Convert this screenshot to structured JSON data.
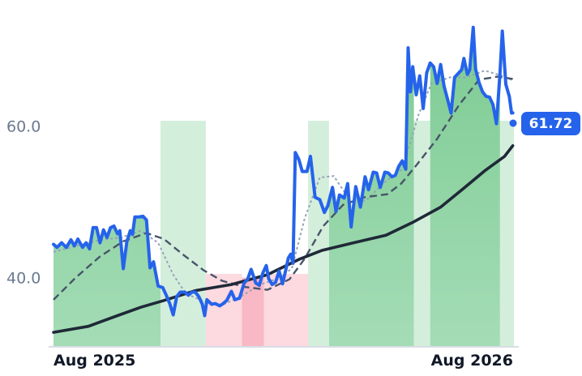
{
  "chart_data": {
    "type": "line",
    "title": "",
    "xlabel": "",
    "ylabel": "",
    "ylim": [
      31,
      73.5
    ],
    "x_range": [
      "2025-08-01",
      "2026-09-01"
    ],
    "grid": false,
    "y_ticks": [
      {
        "value": 40,
        "label": "40.0"
      },
      {
        "value": 60,
        "label": "60.0"
      }
    ],
    "x_ticks": [
      {
        "date": "2025-08-01",
        "label": "Aug 2025"
      },
      {
        "date": "2026-08-01",
        "label": "Aug 2026"
      }
    ],
    "last_value": {
      "value": 61.72,
      "label": "61.72"
    },
    "colors": {
      "price": "#2563eb",
      "ma_long": "#1f2937",
      "ma_mid": "#475569",
      "ma_short": "#94a3b8",
      "up_strong": "#86cc9a",
      "up_weak": "#d4eedc",
      "down_weak": "#fdd9e0",
      "down_strong": "#f9b8c6",
      "badge": "#2563eb"
    },
    "regime_bands": [
      {
        "start": "2025-08-01",
        "end": "2025-11-01",
        "state": "up_strong"
      },
      {
        "start": "2025-11-01",
        "end": "2025-12-10",
        "state": "up_weak"
      },
      {
        "start": "2025-12-10",
        "end": "2026-01-10",
        "state": "down_weak"
      },
      {
        "start": "2026-01-10",
        "end": "2026-01-29",
        "state": "down_strong"
      },
      {
        "start": "2026-01-29",
        "end": "2026-03-08",
        "state": "down_weak"
      },
      {
        "start": "2026-03-08",
        "end": "2026-03-26",
        "state": "up_weak"
      },
      {
        "start": "2026-03-26",
        "end": "2026-06-07",
        "state": "up_strong"
      },
      {
        "start": "2026-06-07",
        "end": "2026-06-21",
        "state": "up_weak"
      },
      {
        "start": "2026-06-21",
        "end": "2026-08-20",
        "state": "up_strong"
      },
      {
        "start": "2026-08-20",
        "end": "2026-09-01",
        "state": "up_weak"
      }
    ],
    "series": [
      {
        "key": "price",
        "points": [
          [
            "2025-08-01",
            44.4
          ],
          [
            "2025-08-04",
            44.0
          ],
          [
            "2025-08-08",
            44.6
          ],
          [
            "2025-08-12",
            44.0
          ],
          [
            "2025-08-16",
            45.0
          ],
          [
            "2025-08-19",
            44.2
          ],
          [
            "2025-08-22",
            45.1
          ],
          [
            "2025-08-26",
            44.0
          ],
          [
            "2025-08-29",
            44.6
          ],
          [
            "2025-09-01",
            43.8
          ],
          [
            "2025-09-04",
            46.6
          ],
          [
            "2025-09-07",
            46.6
          ],
          [
            "2025-09-10",
            44.6
          ],
          [
            "2025-09-13",
            46.3
          ],
          [
            "2025-09-16",
            45.3
          ],
          [
            "2025-09-19",
            46.6
          ],
          [
            "2025-09-22",
            46.8
          ],
          [
            "2025-09-25",
            45.8
          ],
          [
            "2025-09-27",
            46.2
          ],
          [
            "2025-09-30",
            41.2
          ],
          [
            "2025-10-03",
            44.7
          ],
          [
            "2025-10-06",
            46.2
          ],
          [
            "2025-10-08",
            45.7
          ],
          [
            "2025-10-10",
            48.0
          ],
          [
            "2025-10-13",
            48.0
          ],
          [
            "2025-10-17",
            48.1
          ],
          [
            "2025-10-20",
            47.6
          ],
          [
            "2025-10-23",
            41.3
          ],
          [
            "2025-10-26",
            42.1
          ],
          [
            "2025-10-30",
            38.9
          ],
          [
            "2025-11-03",
            38.7
          ],
          [
            "2025-11-06",
            37.7
          ],
          [
            "2025-11-09",
            36.6
          ],
          [
            "2025-11-12",
            35.1
          ],
          [
            "2025-11-15",
            37.5
          ],
          [
            "2025-11-18",
            38.1
          ],
          [
            "2025-11-22",
            38.1
          ],
          [
            "2025-11-25",
            37.7
          ],
          [
            "2025-11-28",
            38.1
          ],
          [
            "2025-12-01",
            38.1
          ],
          [
            "2025-12-04",
            37.5
          ],
          [
            "2025-12-07",
            36.5
          ],
          [
            "2025-12-09",
            35.0
          ],
          [
            "2025-12-11",
            37.1
          ],
          [
            "2025-12-15",
            36.5
          ],
          [
            "2025-12-18",
            36.6
          ],
          [
            "2025-12-22",
            36.3
          ],
          [
            "2025-12-25",
            36.6
          ],
          [
            "2025-12-28",
            37.0
          ],
          [
            "2026-01-01",
            38.2
          ],
          [
            "2026-01-04",
            37.1
          ],
          [
            "2026-01-08",
            37.3
          ],
          [
            "2026-01-12",
            39.3
          ],
          [
            "2026-01-15",
            39.8
          ],
          [
            "2026-01-18",
            41.1
          ],
          [
            "2026-01-22",
            39.3
          ],
          [
            "2026-01-25",
            39.0
          ],
          [
            "2026-01-28",
            40.6
          ],
          [
            "2026-01-31",
            41.6
          ],
          [
            "2026-02-02",
            39.9
          ],
          [
            "2026-02-05",
            39.1
          ],
          [
            "2026-02-08",
            39.4
          ],
          [
            "2026-02-11",
            40.9
          ],
          [
            "2026-02-14",
            39.2
          ],
          [
            "2026-02-17",
            41.2
          ],
          [
            "2026-02-19",
            42.6
          ],
          [
            "2026-02-21",
            43.1
          ],
          [
            "2026-02-23",
            41.9
          ],
          [
            "2026-02-25",
            56.5
          ],
          [
            "2026-02-28",
            55.6
          ],
          [
            "2026-03-03",
            54.0
          ],
          [
            "2026-03-07",
            54.0
          ],
          [
            "2026-03-10",
            56.0
          ],
          [
            "2026-03-14",
            50.6
          ],
          [
            "2026-03-18",
            50.3
          ],
          [
            "2026-03-22",
            48.6
          ],
          [
            "2026-03-25",
            49.5
          ],
          [
            "2026-03-29",
            51.9
          ],
          [
            "2026-04-01",
            48.7
          ],
          [
            "2026-04-04",
            50.9
          ],
          [
            "2026-04-08",
            50.5
          ],
          [
            "2026-04-11",
            52.4
          ],
          [
            "2026-04-14",
            46.7
          ],
          [
            "2026-04-18",
            52.0
          ],
          [
            "2026-04-22",
            49.3
          ],
          [
            "2026-04-26",
            53.3
          ],
          [
            "2026-04-29",
            51.6
          ],
          [
            "2026-05-03",
            53.9
          ],
          [
            "2026-05-06",
            53.8
          ],
          [
            "2026-05-09",
            51.9
          ],
          [
            "2026-05-13",
            53.9
          ],
          [
            "2026-05-16",
            53.8
          ],
          [
            "2026-05-19",
            53.3
          ],
          [
            "2026-05-22",
            53.5
          ],
          [
            "2026-05-25",
            54.7
          ],
          [
            "2026-05-28",
            55.4
          ],
          [
            "2026-05-31",
            54.3
          ],
          [
            "2026-06-02",
            70.3
          ],
          [
            "2026-06-04",
            64.5
          ],
          [
            "2026-06-06",
            67.8
          ],
          [
            "2026-06-09",
            64.1
          ],
          [
            "2026-06-12",
            66.6
          ],
          [
            "2026-06-15",
            62.3
          ],
          [
            "2026-06-18",
            67.0
          ],
          [
            "2026-06-21",
            68.3
          ],
          [
            "2026-06-24",
            67.8
          ],
          [
            "2026-06-27",
            65.6
          ],
          [
            "2026-06-30",
            68.1
          ],
          [
            "2026-07-03",
            65.2
          ],
          [
            "2026-07-06",
            63.5
          ],
          [
            "2026-07-09",
            61.7
          ],
          [
            "2026-07-12",
            66.4
          ],
          [
            "2026-07-15",
            66.9
          ],
          [
            "2026-07-18",
            67.4
          ],
          [
            "2026-07-20",
            68.9
          ],
          [
            "2026-07-23",
            66.8
          ],
          [
            "2026-07-25",
            67.4
          ],
          [
            "2026-07-28",
            73.0
          ],
          [
            "2026-07-30",
            67.5
          ],
          [
            "2026-08-02",
            65.7
          ],
          [
            "2026-08-05",
            64.5
          ],
          [
            "2026-08-08",
            63.9
          ],
          [
            "2026-08-11",
            63.8
          ],
          [
            "2026-08-14",
            62.8
          ],
          [
            "2026-08-17",
            60.3
          ],
          [
            "2026-08-20",
            66.9
          ],
          [
            "2026-08-22",
            72.5
          ],
          [
            "2026-08-25",
            65.5
          ],
          [
            "2026-08-28",
            63.9
          ],
          [
            "2026-08-30",
            61.7
          ],
          [
            "2026-08-31",
            61.72
          ]
        ]
      },
      {
        "key": "ma_short",
        "points": [
          [
            "2025-08-01",
            43.4
          ],
          [
            "2025-08-21",
            44.2
          ],
          [
            "2025-09-08",
            44.9
          ],
          [
            "2025-09-28",
            45.3
          ],
          [
            "2025-10-15",
            46.2
          ],
          [
            "2025-10-30",
            44.6
          ],
          [
            "2025-11-12",
            40.4
          ],
          [
            "2025-11-23",
            37.9
          ],
          [
            "2025-12-08",
            36.9
          ],
          [
            "2025-12-24",
            36.4
          ],
          [
            "2026-01-10",
            37.6
          ],
          [
            "2026-01-26",
            39.1
          ],
          [
            "2026-02-10",
            39.9
          ],
          [
            "2026-02-22",
            41.2
          ],
          [
            "2026-03-05",
            47.8
          ],
          [
            "2026-03-18",
            53.2
          ],
          [
            "2026-03-30",
            53.4
          ],
          [
            "2026-04-13",
            50.2
          ],
          [
            "2026-04-27",
            50.2
          ],
          [
            "2026-05-12",
            52.5
          ],
          [
            "2026-05-28",
            54.3
          ],
          [
            "2026-06-11",
            61.5
          ],
          [
            "2026-06-22",
            65.6
          ],
          [
            "2026-07-08",
            66.4
          ],
          [
            "2026-07-22",
            66.4
          ],
          [
            "2026-08-07",
            67.3
          ],
          [
            "2026-08-22",
            66.6
          ],
          [
            "2026-08-31",
            66.0
          ]
        ]
      },
      {
        "key": "ma_mid",
        "points": [
          [
            "2025-08-01",
            37.1
          ],
          [
            "2025-08-20",
            40.0
          ],
          [
            "2025-09-10",
            42.8
          ],
          [
            "2025-09-30",
            44.8
          ],
          [
            "2025-10-20",
            45.9
          ],
          [
            "2025-11-04",
            45.1
          ],
          [
            "2025-11-20",
            43.1
          ],
          [
            "2025-12-08",
            41.0
          ],
          [
            "2025-12-24",
            39.6
          ],
          [
            "2026-01-12",
            38.8
          ],
          [
            "2026-02-01",
            38.4
          ],
          [
            "2026-02-20",
            39.8
          ],
          [
            "2026-03-05",
            42.5
          ],
          [
            "2026-03-21",
            46.8
          ],
          [
            "2026-04-07",
            49.6
          ],
          [
            "2026-04-25",
            50.6
          ],
          [
            "2026-05-15",
            51.0
          ],
          [
            "2026-05-27",
            52.4
          ],
          [
            "2026-06-09",
            54.8
          ],
          [
            "2026-06-27",
            58.3
          ],
          [
            "2026-07-16",
            62.8
          ],
          [
            "2026-08-02",
            66.1
          ],
          [
            "2026-08-18",
            66.5
          ],
          [
            "2026-08-31",
            66.2
          ]
        ]
      },
      {
        "key": "ma_long",
        "points": [
          [
            "2025-08-01",
            32.8
          ],
          [
            "2025-08-31",
            33.6
          ],
          [
            "2025-09-25",
            35.0
          ],
          [
            "2025-10-15",
            36.1
          ],
          [
            "2025-11-04",
            37.0
          ],
          [
            "2025-12-01",
            38.3
          ],
          [
            "2026-01-01",
            39.1
          ],
          [
            "2026-02-01",
            40.4
          ],
          [
            "2026-02-28",
            42.4
          ],
          [
            "2026-03-20",
            43.6
          ],
          [
            "2026-04-16",
            44.6
          ],
          [
            "2026-05-14",
            45.6
          ],
          [
            "2026-06-06",
            47.3
          ],
          [
            "2026-06-30",
            49.3
          ],
          [
            "2026-07-20",
            51.8
          ],
          [
            "2026-08-07",
            54.1
          ],
          [
            "2026-08-24",
            56.0
          ],
          [
            "2026-08-31",
            57.4
          ]
        ]
      }
    ]
  }
}
